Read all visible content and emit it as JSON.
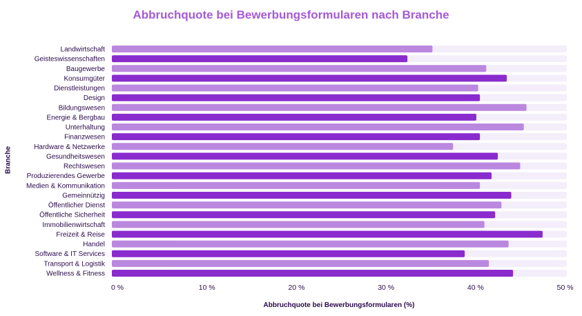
{
  "chart_data": {
    "type": "bar",
    "orientation": "horizontal",
    "title": "Abbruchquote bei Bewerbungsformularen nach Branche",
    "xlabel": "Abbruchquote bei Bewerbungsformularen (%)",
    "ylabel": "Branche",
    "xlim": [
      0,
      50.8
    ],
    "xticks": [
      0,
      10,
      20,
      30,
      40,
      50
    ],
    "xtick_labels": [
      "0 %",
      "10 %",
      "20 %",
      "30 %",
      "40 %",
      "50 %"
    ],
    "grid": false,
    "categories": [
      "Landwirtschaft",
      "Geisteswissenschaften",
      "Baugewerbe",
      "Konsumgüter",
      "Dienstleistungen",
      "Design",
      "Bildungswesen",
      "Energie & Bergbau",
      "Unterhaltung",
      "Finanzwesen",
      "Hardware & Netzwerke",
      "Gesundheitswesen",
      "Rechtswesen",
      "Produzierendes Gewerbe",
      "Medien & Kommunikation",
      "Gemeinnützig",
      "Öffentlicher Dienst",
      "Öffentliche Sicherheit",
      "Immobilienwirtschaft",
      "Freizeit & Reise",
      "Handel",
      "Software & IT Services",
      "Transport & Logistik",
      "Wellness & Fitness"
    ],
    "values": [
      35.8,
      33.0,
      41.8,
      44.1,
      40.9,
      41.1,
      46.3,
      40.7,
      46.0,
      41.1,
      38.1,
      43.1,
      45.6,
      42.4,
      41.1,
      44.6,
      43.5,
      42.8,
      41.6,
      48.1,
      44.3,
      39.4,
      42.1,
      44.8
    ],
    "colors": {
      "light": "#bb88e0",
      "dark": "#8a2bce",
      "track": "#f3eefa",
      "title": "#a45ad6",
      "text": "#2a0a4a"
    }
  }
}
